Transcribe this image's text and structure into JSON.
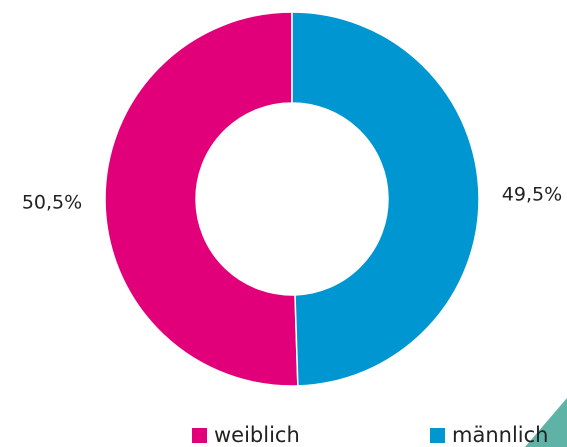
{
  "chart_data": {
    "type": "donut",
    "categories": [
      "weiblich",
      "männlich"
    ],
    "values": [
      50.5,
      49.5
    ],
    "value_labels": [
      "50,5%",
      "49,5%"
    ],
    "colors": [
      "#e2007a",
      "#0096d1"
    ],
    "legend": "bottom"
  }
}
